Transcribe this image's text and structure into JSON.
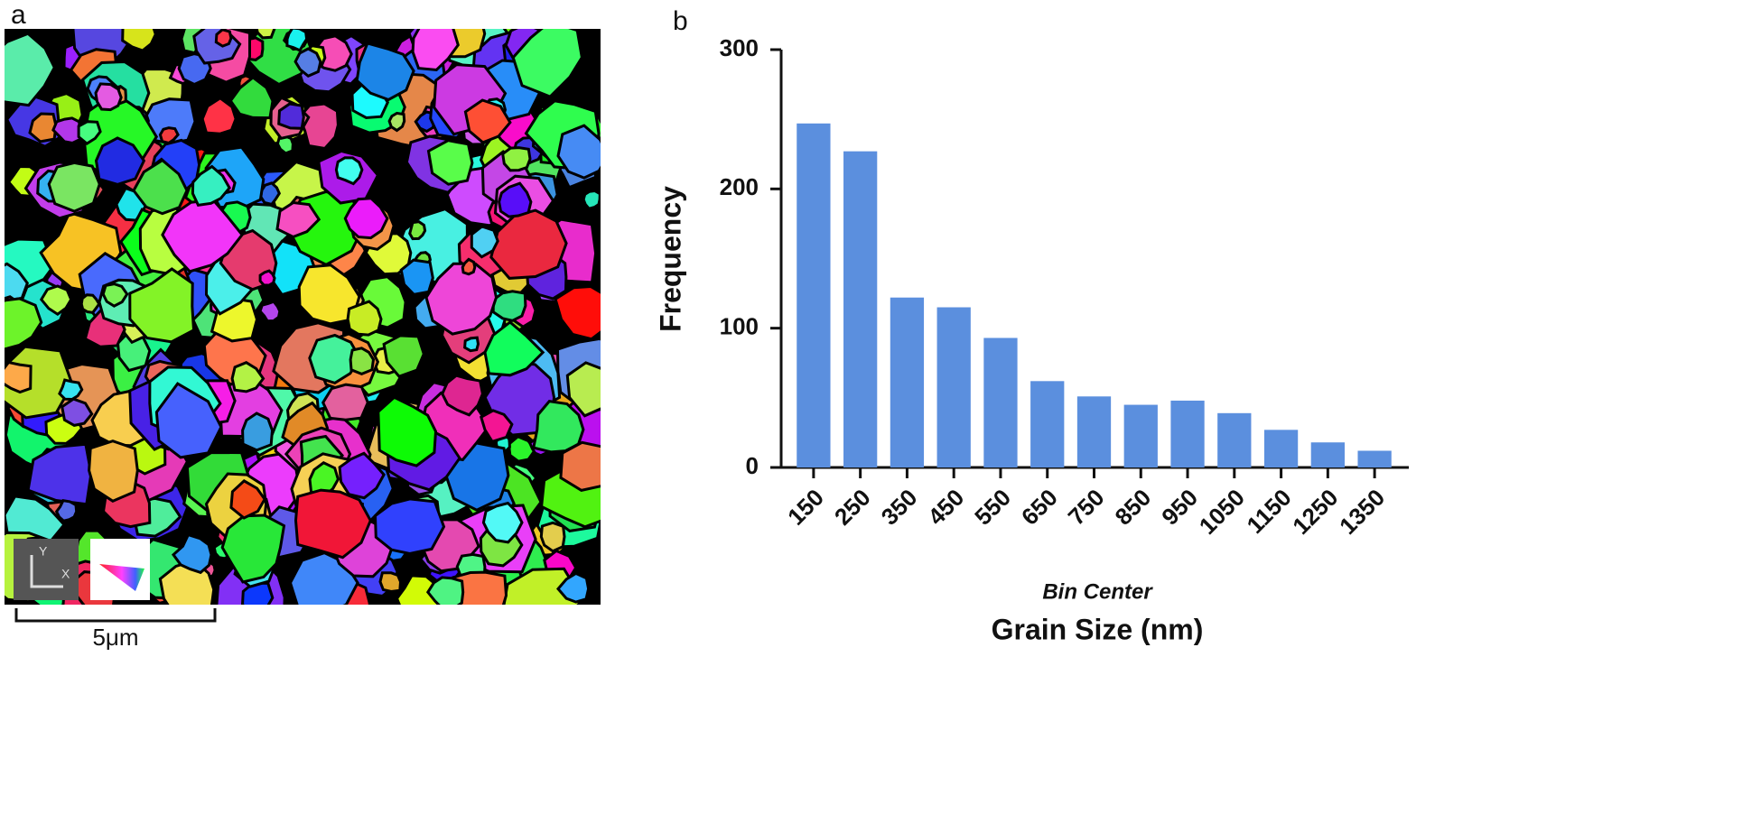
{
  "panels": {
    "a": "a",
    "b": "b"
  },
  "map": {
    "axis_y": "Y",
    "axis_x": "X",
    "scale_bar": "5μm"
  },
  "chart_data": {
    "type": "bar",
    "ylabel": "Frequency",
    "xlabel_note": "Bin Center",
    "xlabel": "Grain Size (nm)",
    "categories": [
      "150",
      "250",
      "350",
      "450",
      "550",
      "650",
      "750",
      "850",
      "950",
      "1050",
      "1150",
      "1250",
      "1350"
    ],
    "values": [
      247,
      227,
      122,
      115,
      93,
      62,
      51,
      45,
      48,
      39,
      27,
      18,
      12
    ],
    "color": "#5b8fde",
    "ylim": [
      0,
      300
    ],
    "yticks": [
      0,
      100,
      200,
      300
    ],
    "grid": false
  }
}
